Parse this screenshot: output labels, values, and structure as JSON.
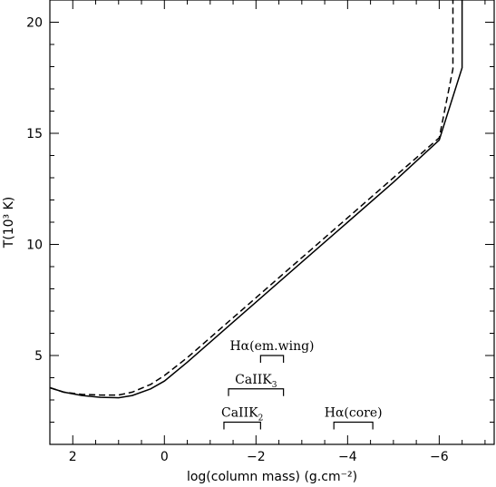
{
  "chart_data": {
    "type": "line",
    "title": "",
    "xlabel": "log(column mass) (g.cm⁻²)",
    "ylabel": "T(10³ K)",
    "xlim": [
      2.5,
      -7.2
    ],
    "ylim": [
      1,
      21
    ],
    "x_ticks": [
      2,
      0,
      -2,
      -4,
      -6
    ],
    "x_tick_labels": [
      "2",
      "0",
      "−2",
      "−4",
      "−6"
    ],
    "y_ticks": [
      5,
      10,
      15,
      20
    ],
    "y_tick_labels": [
      "5",
      "10",
      "15",
      "20"
    ],
    "grid": false,
    "series": [
      {
        "style": "solid",
        "x": [
          2.5,
          2.2,
          1.8,
          1.4,
          1.0,
          0.7,
          0.3,
          0.0,
          -0.5,
          -1.0,
          -2.0,
          -3.0,
          -4.0,
          -5.0,
          -6.0,
          -6.5,
          -6.5
        ],
        "y": [
          3.55,
          3.35,
          3.2,
          3.12,
          3.1,
          3.2,
          3.5,
          3.85,
          4.7,
          5.6,
          7.4,
          9.2,
          11.0,
          12.8,
          14.7,
          17.95,
          21
        ]
      },
      {
        "style": "dashed",
        "x": [
          2.5,
          2.2,
          1.8,
          1.4,
          1.0,
          0.7,
          0.3,
          0.0,
          -0.5,
          -1.0,
          -2.0,
          -3.0,
          -4.0,
          -5.0,
          -6.0,
          -6.3,
          -6.3
        ],
        "y": [
          3.55,
          3.35,
          3.25,
          3.22,
          3.22,
          3.35,
          3.7,
          4.1,
          4.9,
          5.8,
          7.6,
          9.4,
          11.2,
          13.0,
          14.8,
          17.9,
          21
        ]
      }
    ],
    "annotations": [
      {
        "label": "Hα(em.wing)",
        "sub": "",
        "x_from": -2.1,
        "x_to": -2.6,
        "y": 5.0
      },
      {
        "label": "CaIIK",
        "sub": "3",
        "x_from": -1.4,
        "x_to": -2.6,
        "y": 3.5
      },
      {
        "label": "CaIIK",
        "sub": "2",
        "x_from": -1.3,
        "x_to": -2.1,
        "y": 2.0
      },
      {
        "label": "Hα(core)",
        "sub": "",
        "x_from": -3.7,
        "x_to": -4.55,
        "y": 2.0
      }
    ]
  }
}
